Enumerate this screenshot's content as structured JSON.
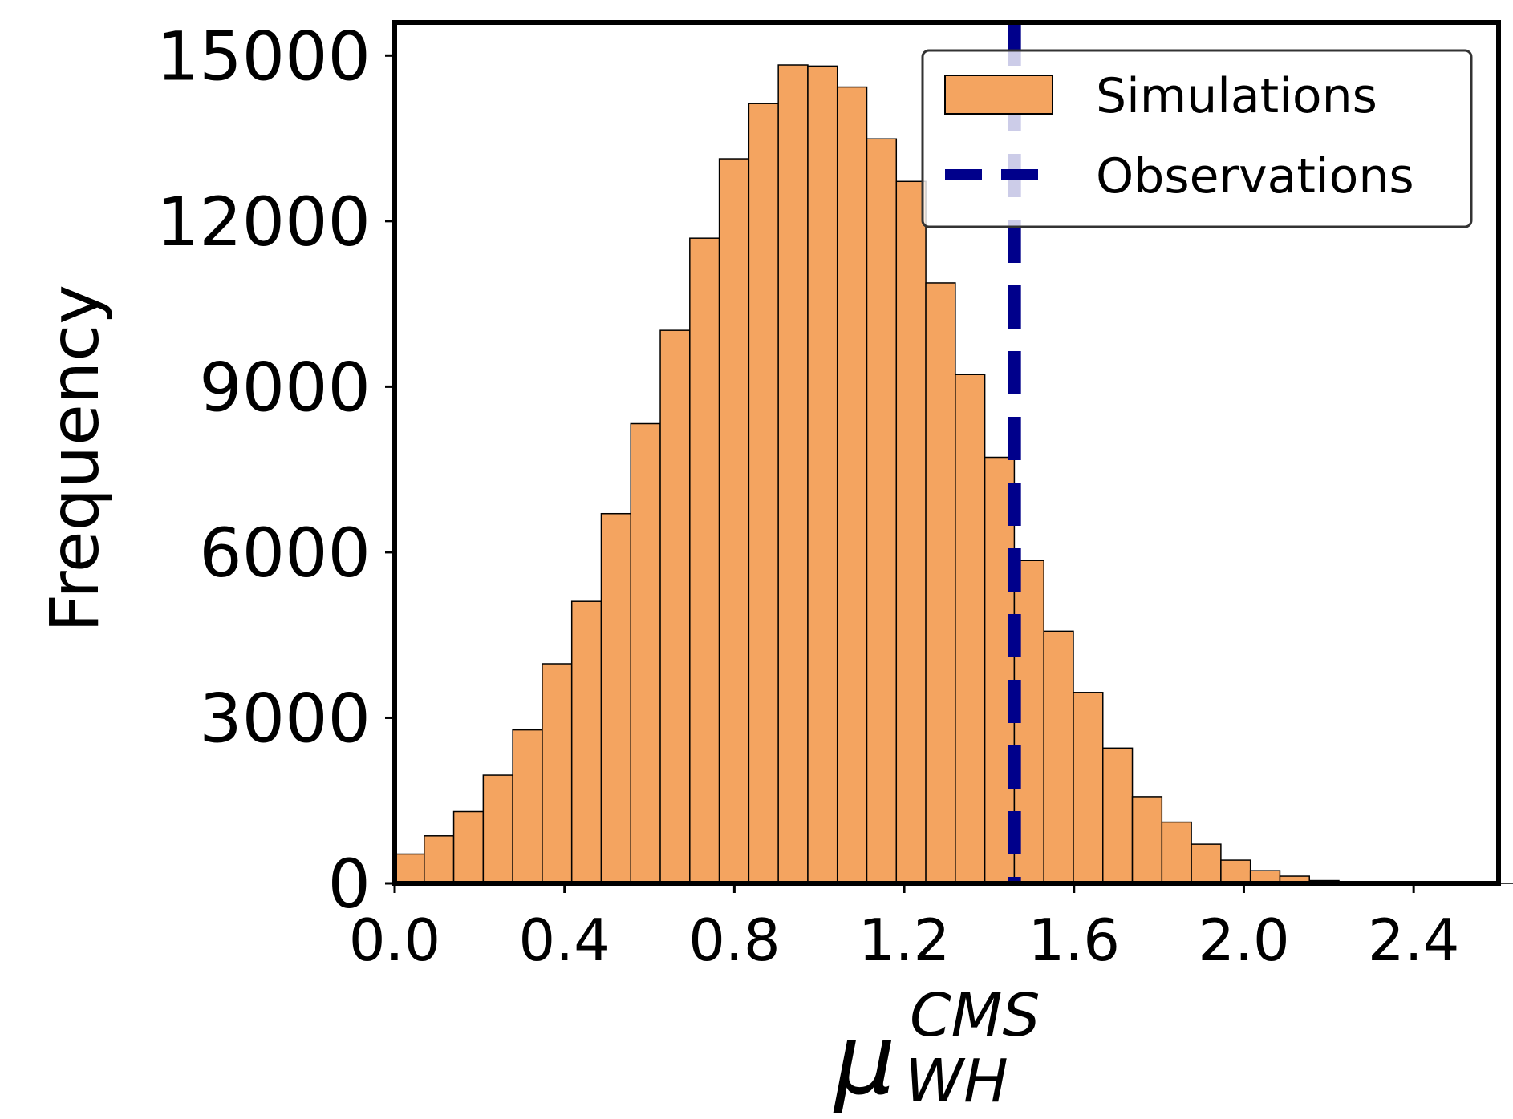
{
  "chart_data": {
    "type": "histogram",
    "title": "",
    "xlabel": {
      "symbol": "μ",
      "superscript": "CMS",
      "subscript": "WH"
    },
    "ylabel": "Frequency",
    "xlim": [
      0.0,
      2.6
    ],
    "ylim": [
      0,
      15600
    ],
    "x_ticks": [
      "0.0",
      "0.4",
      "0.8",
      "1.2",
      "1.6",
      "2.0",
      "2.4"
    ],
    "y_ticks": [
      "0",
      "3000",
      "6000",
      "9000",
      "12000",
      "15000"
    ],
    "bin_width": 0.0695,
    "bin_start": 0.0,
    "series": [
      {
        "name": "Simulations",
        "kind": "histogram",
        "color": "#F4A460",
        "edge_color": "#000000",
        "values": [
          530,
          860,
          1300,
          1960,
          2780,
          3980,
          5110,
          6700,
          8330,
          10020,
          11690,
          13130,
          14130,
          14830,
          14810,
          14430,
          13490,
          12720,
          10880,
          9220,
          7720,
          5850,
          4570,
          3460,
          2450,
          1570,
          1110,
          710,
          420,
          230,
          130,
          50,
          20,
          10,
          5,
          5,
          3,
          2
        ]
      },
      {
        "name": "Observations",
        "kind": "vline",
        "x": 1.46,
        "color": "#00008B",
        "linestyle": "dashed"
      }
    ],
    "legend": {
      "position": "top-right",
      "entries": [
        "Simulations",
        "Observations"
      ]
    }
  }
}
